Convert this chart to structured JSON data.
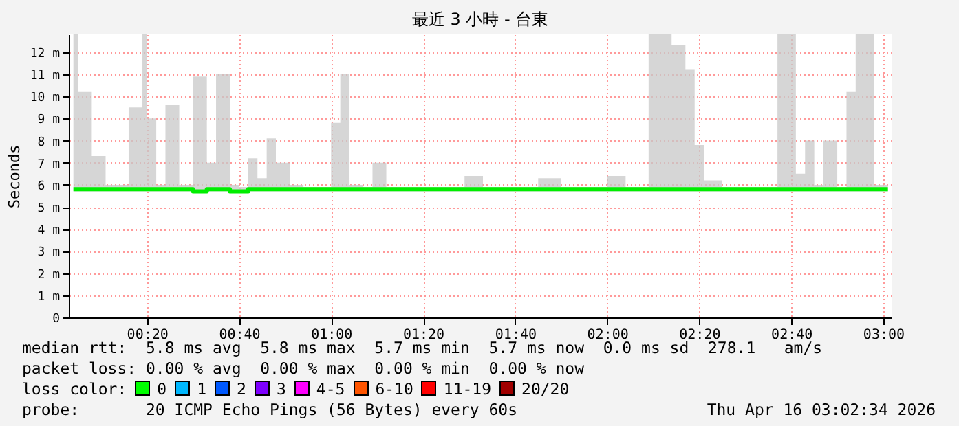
{
  "chart_data": {
    "type": "step",
    "title": "最近 3 小時 - 台東",
    "ylabel": "Seconds",
    "x": [
      0.0667,
      0.0833,
      0.1333,
      0.1833,
      0.2333,
      0.2667,
      0.3167,
      0.3333,
      0.3667,
      0.4,
      0.45,
      0.5,
      0.55,
      0.5833,
      0.6333,
      0.6667,
      0.7,
      0.7333,
      0.7667,
      0.8,
      0.85,
      0.9,
      0.95,
      1,
      1.0333,
      1.0667,
      1.1167,
      1.15,
      1.2,
      1.2667,
      1.3333,
      1.4,
      1.4833,
      1.55,
      1.6167,
      1.6833,
      1.75,
      1.8333,
      1.9167,
      2,
      2.0667,
      2.1167,
      2.15,
      2.1833,
      2.2333,
      2.2833,
      2.3167,
      2.35,
      2.4167,
      2.5,
      2.5667,
      2.6167,
      2.6333,
      2.6833,
      2.7167,
      2.75,
      2.7833,
      2.8333,
      2.8667,
      2.9,
      2.9333,
      2.9667,
      3.0167
    ],
    "series": [
      {
        "color": "#00ee00",
        "values": [
          5.8,
          5.8,
          5.8,
          5.8,
          5.8,
          5.8,
          5.8,
          5.8,
          5.8,
          5.8,
          5.8,
          5.7,
          5.8,
          5.8,
          5.7,
          5.7,
          5.8,
          5.8,
          5.8,
          5.8,
          5.8,
          5.8,
          5.8,
          5.8,
          5.8,
          5.8,
          5.8,
          5.8,
          5.8,
          5.8,
          5.8,
          5.8,
          5.8,
          5.8,
          5.8,
          5.8,
          5.8,
          5.8,
          5.8,
          5.8,
          5.8,
          5.8,
          5.8,
          5.8,
          5.8,
          5.8,
          5.8,
          5.8,
          5.8,
          5.8,
          5.8,
          5.8,
          5.8,
          5.8,
          5.8,
          5.8,
          5.8,
          5.8,
          5.8,
          5.8,
          5.8,
          5.8,
          5.8
        ],
        "lower": [
          5.7,
          5.7,
          5.7,
          5.7,
          5.7,
          5.7,
          5.7,
          5.7,
          5.7,
          5.7,
          5.7,
          5.7,
          5.7,
          5.7,
          5.7,
          5.7,
          5.7,
          5.7,
          5.7,
          5.7,
          5.7,
          5.7,
          5.7,
          5.7,
          5.7,
          5.7,
          5.7,
          5.7,
          5.7,
          5.7,
          5.7,
          5.7,
          5.7,
          5.7,
          5.7,
          5.7,
          5.7,
          5.7,
          5.7,
          5.7,
          5.7,
          5.7,
          5.7,
          5.7,
          5.7,
          5.7,
          5.7,
          5.7,
          5.7,
          5.7,
          5.7,
          5.7,
          5.7,
          5.7,
          5.7,
          5.7,
          5.7,
          5.7,
          5.7,
          5.7,
          5.7,
          5.7,
          5.7
        ],
        "upper": [
          12.8,
          10.2,
          7.3,
          6,
          6,
          9.5,
          12.8,
          9,
          6,
          9.6,
          6,
          10.9,
          7,
          11,
          6,
          5.9,
          7.2,
          6.3,
          8.1,
          7,
          6,
          5.9,
          5.9,
          8.8,
          11,
          6,
          5.9,
          7,
          5.9,
          5.9,
          5.9,
          5.9,
          6.4,
          5.9,
          5.9,
          5.9,
          6.3,
          5.9,
          5.9,
          6.4,
          5.9,
          5.9,
          12.8,
          12.8,
          12.3,
          11.2,
          7.8,
          6.2,
          5.9,
          5.9,
          5.9,
          12.8,
          12.8,
          6.5,
          8,
          6,
          8,
          5.9,
          10.2,
          12.8,
          12.8,
          6,
          5.9
        ]
      }
    ],
    "xlim": [
      0.05,
      3.03
    ],
    "xticks": [
      {
        "value": 0.3333,
        "label": "00:20"
      },
      {
        "value": 0.6667,
        "label": "00:40"
      },
      {
        "value": 1,
        "label": "01:00"
      },
      {
        "value": 1.3333,
        "label": "01:20"
      },
      {
        "value": 1.6667,
        "label": "01:40"
      },
      {
        "value": 2,
        "label": "02:00"
      },
      {
        "value": 2.3333,
        "label": "02:20"
      },
      {
        "value": 2.6667,
        "label": "02:40"
      },
      {
        "value": 3,
        "label": "03:00"
      }
    ],
    "ylim": [
      0,
      12.8
    ],
    "yticks": [
      0,
      {
        "value": 1,
        "label": "1 m"
      },
      {
        "value": 2,
        "label": "2 m"
      },
      {
        "value": 3,
        "label": "3 m"
      },
      {
        "value": 4,
        "label": "4 m"
      },
      {
        "value": 5,
        "label": "5 m"
      },
      {
        "value": 6,
        "label": "6 m"
      },
      {
        "value": 7,
        "label": "7 m"
      },
      {
        "value": 8,
        "label": "8 m"
      },
      {
        "value": 9,
        "label": "9 m"
      },
      {
        "value": 10,
        "label": "10 m"
      },
      {
        "value": 11,
        "label": "11 m"
      },
      {
        "value": 12,
        "label": "12 m"
      }
    ],
    "grid": true,
    "annotations": [
      "median rtt:  5.8 ms avg  5.8 ms max  5.7 ms min  5.7 ms now  0.0 ms sd  278.1   am/s",
      "packet loss: 0.00 % avg  0.00 % max  0.00 % min  0.00 % now",
      "loss color:  0  1  2  3  4-5  6-10  11-19  20/20",
      "probe:       20 ICMP Echo Pings (56 Bytes) every 60s",
      "Thu Apr 16 03:02:34 2026"
    ]
  }
}
